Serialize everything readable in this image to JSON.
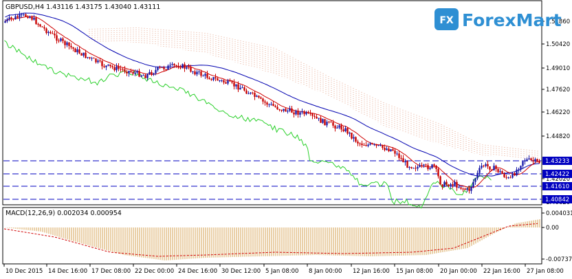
{
  "chart": {
    "symbol_line": "GBPUSD,H4  1.43116 1.43175 1.43040 1.43111",
    "logo_text": "ForexMart",
    "logo_glyph": "FX",
    "price_axis": [
      "1.51860",
      "1.50420",
      "1.49010",
      "1.47620",
      "1.46220",
      "1.44820",
      "1.42020",
      "1.40620"
    ],
    "level_labels": [
      "1.43233",
      "1.42422",
      "1.41610",
      "1.40842"
    ],
    "level_values": [
      1.43233,
      1.42422,
      1.4161,
      1.40842
    ],
    "macd_label": "MACD(12,26,9) 0.002034 0.000954",
    "macd_axis": [
      "0.004031",
      "0.00",
      "-0.007377"
    ],
    "time_axis": [
      "10 Dec 2015",
      "14 Dec 16:00",
      "17 Dec 08:00",
      "22 Dec 00:00",
      "24 Dec 16:00",
      "30 Dec 12:00",
      "5 Jan 08:00",
      "8 Jan 00:00",
      "12 Jan 16:00",
      "15 Jan 08:00",
      "20 Jan 00:00",
      "22 Jan 16:00",
      "27 Jan 08:00"
    ],
    "colors": {
      "bull": "#1a1aa8",
      "bear": "#c80000",
      "tenkan": "#d00000",
      "kijun": "#0000b0",
      "chikou": "#2ad02a",
      "cloud": "#e09070",
      "levels": "#0000c0",
      "histogram": "#d4a050",
      "signal": "#d00000"
    }
  }
}
